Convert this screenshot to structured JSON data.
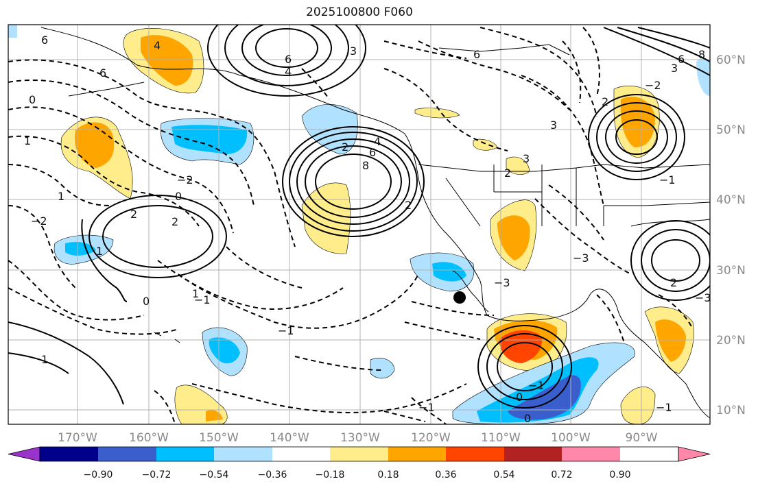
{
  "title": "2025100800 F060",
  "longitude_labels": [
    "170°W",
    "160°W",
    "150°W",
    "140°W",
    "130°W",
    "120°W",
    "110°W",
    "100°W",
    "90°W"
  ],
  "latitude_labels": [
    "60°N",
    "50°N",
    "40°N",
    "30°N",
    "20°N",
    "10°N"
  ],
  "colorbar": {
    "colors": [
      "#9933cc",
      "#00008b",
      "#3a5fcd",
      "#00bfff",
      "#b0e2ff",
      "#ffffff",
      "#ffec8b",
      "#ffa500",
      "#ff4500",
      "#b22222",
      "#ff88aa"
    ],
    "tick_labels": [
      "−0.90",
      "−0.72",
      "−0.54",
      "−0.36",
      "−0.18",
      "0.18",
      "0.36",
      "0.54",
      "0.72",
      "0.90"
    ]
  },
  "contour_labels": [
    "6",
    "4",
    "6",
    "6",
    "4",
    "3",
    "2",
    "4",
    "6",
    "8",
    "1",
    "0",
    "−2",
    "2",
    "2",
    "−2",
    "0",
    "−1",
    "0",
    "−1",
    "1",
    "−1",
    "−3",
    "3",
    "2",
    "2",
    "3",
    "−3",
    "2",
    "−2",
    "6",
    "8",
    "3",
    "−1",
    "0",
    "0",
    "−1",
    "6",
    "−1",
    "1",
    "2",
    "−3",
    "1",
    "1"
  ],
  "marker": "filled-circle",
  "colors": {
    "contour": "#000000",
    "grid": "#b0b0b0",
    "coast": "#000000",
    "axis_label": "#8a8a8a"
  }
}
